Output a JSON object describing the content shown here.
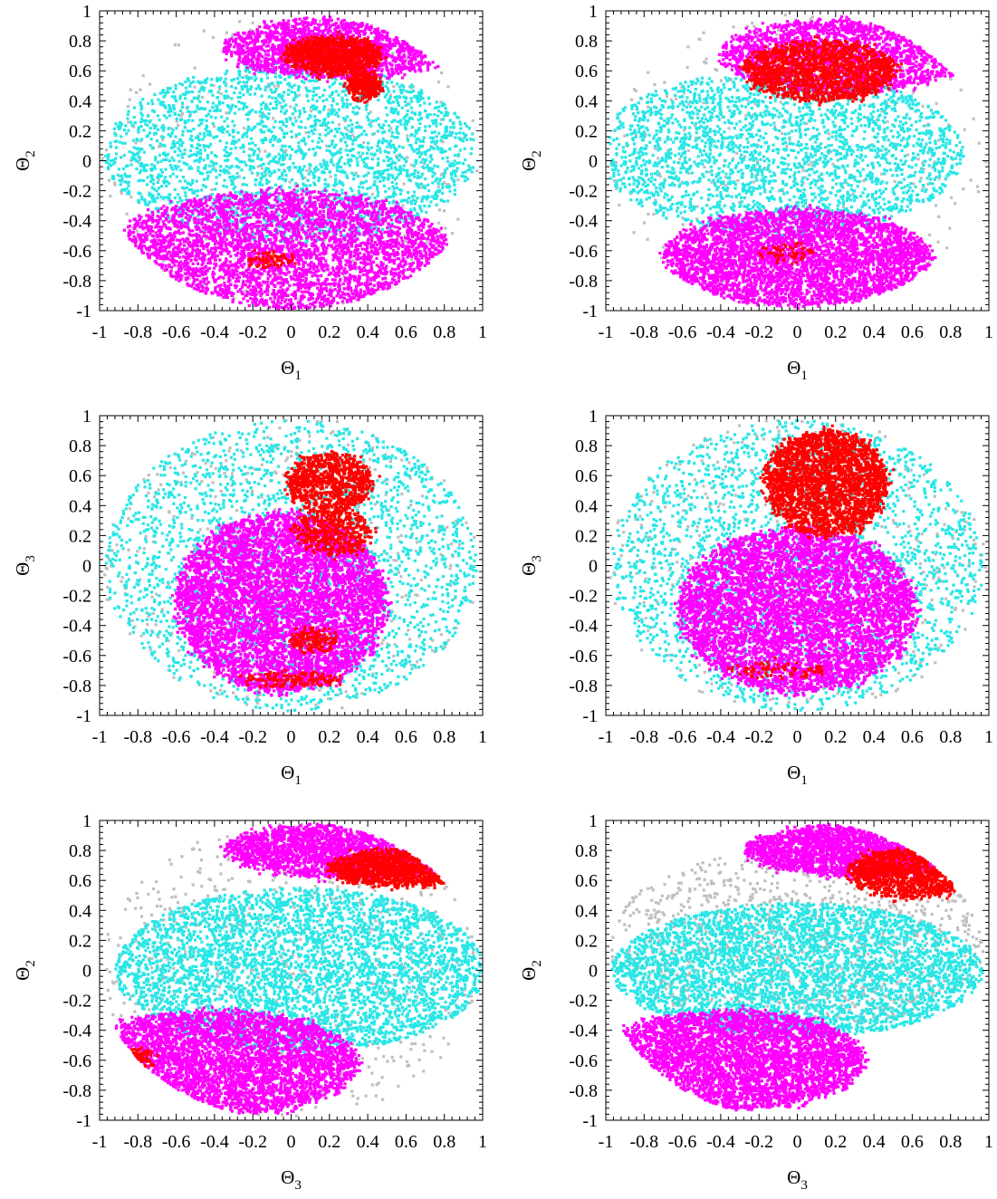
{
  "figure": {
    "background": "#ffffff"
  },
  "colors": {
    "gray": "#bfbfbf",
    "cyan": "#29e6e6",
    "magenta": "#ff00ff",
    "red": "#ff0000"
  },
  "chart_data": [
    {
      "type": "scatter",
      "panel": "row1-left",
      "xlabel": "Θ",
      "xlabel_sub": "1",
      "ylabel": "Θ",
      "ylabel_sub": "2",
      "xlim": [
        -1,
        1
      ],
      "ylim": [
        -1,
        1
      ],
      "xticks": [
        "-1",
        "-0.8",
        "-0.6",
        "-0.4",
        "-0.2",
        "0",
        "0.2",
        "0.4",
        "0.6",
        "0.8",
        "1"
      ],
      "yticks": [
        "1",
        "0.8",
        "0.6",
        "0.4",
        "0.2",
        "0",
        "-0.2",
        "-0.4",
        "-0.6",
        "-0.8",
        "-1"
      ],
      "grid": false,
      "legend": "none",
      "series": [
        {
          "color": "gray",
          "points": 350,
          "region": [
            0,
            0,
            0.99,
            0.99
          ]
        },
        {
          "color": "cyan",
          "points": 2600,
          "region": [
            0,
            0.05,
            0.97,
            0.6
          ]
        },
        {
          "color": "magenta",
          "points": 4200,
          "region": [
            -0.05,
            -0.6,
            0.88,
            0.4
          ]
        },
        {
          "color": "magenta",
          "points": 2000,
          "region": [
            0.25,
            0.75,
            0.6,
            0.2
          ]
        },
        {
          "color": "red",
          "points": 1100,
          "region": [
            0.22,
            0.7,
            0.25,
            0.12
          ]
        },
        {
          "color": "red",
          "points": 350,
          "region": [
            0.38,
            0.5,
            0.08,
            0.09
          ]
        },
        {
          "color": "red",
          "points": 80,
          "region": [
            -0.1,
            -0.66,
            0.12,
            0.04
          ]
        }
      ]
    },
    {
      "type": "scatter",
      "panel": "row1-right",
      "xlabel": "Θ",
      "xlabel_sub": "1",
      "ylabel": "Θ",
      "ylabel_sub": "2",
      "xlim": [
        -1,
        1
      ],
      "ylim": [
        -1,
        1
      ],
      "xticks": [
        "-1",
        "-0.8",
        "-0.6",
        "-0.4",
        "-0.2",
        "0",
        "0.2",
        "0.4",
        "0.6",
        "0.8",
        "1"
      ],
      "yticks": [
        "1",
        "0.8",
        "0.6",
        "0.4",
        "0.2",
        "0",
        "-0.2",
        "-0.4",
        "-0.6",
        "-0.8",
        "-1"
      ],
      "grid": false,
      "legend": "none",
      "series": [
        {
          "color": "gray",
          "points": 350,
          "region": [
            0,
            0,
            0.99,
            0.99
          ]
        },
        {
          "color": "cyan",
          "points": 2600,
          "region": [
            -0.1,
            0.05,
            0.97,
            0.55
          ]
        },
        {
          "color": "magenta",
          "points": 4000,
          "region": [
            0.0,
            -0.65,
            0.7,
            0.32
          ]
        },
        {
          "color": "magenta",
          "points": 2200,
          "region": [
            0.25,
            0.7,
            0.65,
            0.25
          ]
        },
        {
          "color": "red",
          "points": 1600,
          "region": [
            0.12,
            0.6,
            0.4,
            0.2
          ]
        },
        {
          "color": "red",
          "points": 60,
          "region": [
            -0.05,
            -0.62,
            0.15,
            0.06
          ]
        }
      ]
    },
    {
      "type": "scatter",
      "panel": "row2-left",
      "xlabel": "Θ",
      "xlabel_sub": "1",
      "ylabel": "Θ",
      "ylabel_sub": "3",
      "xlim": [
        -1,
        1
      ],
      "ylim": [
        -1,
        1
      ],
      "xticks": [
        "-1",
        "-0.8",
        "-0.6",
        "-0.4",
        "-0.2",
        "0",
        "0.2",
        "0.4",
        "0.6",
        "0.8",
        "1"
      ],
      "yticks": [
        "1",
        "0.8",
        "0.6",
        "0.4",
        "0.2",
        "0",
        "-0.2",
        "-0.4",
        "-0.6",
        "-0.8",
        "-1"
      ],
      "grid": false,
      "legend": "none",
      "series": [
        {
          "color": "gray",
          "points": 400,
          "region": [
            0,
            0,
            0.99,
            0.99
          ]
        },
        {
          "color": "cyan",
          "points": 2400,
          "region": [
            0,
            0,
            0.97,
            0.97
          ]
        },
        {
          "color": "magenta",
          "points": 9000,
          "region": [
            -0.05,
            -0.25,
            0.55,
            0.6
          ]
        },
        {
          "color": "red",
          "points": 900,
          "region": [
            0.2,
            0.55,
            0.22,
            0.2
          ]
        },
        {
          "color": "red",
          "points": 450,
          "region": [
            0.22,
            0.22,
            0.2,
            0.15
          ]
        },
        {
          "color": "red",
          "points": 150,
          "region": [
            0.12,
            -0.5,
            0.12,
            0.08
          ]
        },
        {
          "color": "red",
          "points": 150,
          "region": [
            0.0,
            -0.76,
            0.28,
            0.04
          ]
        }
      ]
    },
    {
      "type": "scatter",
      "panel": "row2-right",
      "xlabel": "Θ",
      "xlabel_sub": "1",
      "ylabel": "Θ",
      "ylabel_sub": "3",
      "xlim": [
        -1,
        1
      ],
      "ylim": [
        -1,
        1
      ],
      "xticks": [
        "-1",
        "-0.8",
        "-0.6",
        "-0.4",
        "-0.2",
        "0",
        "0.2",
        "0.4",
        "0.6",
        "0.8",
        "1"
      ],
      "yticks": [
        "1",
        "0.8",
        "0.6",
        "0.4",
        "0.2",
        "0",
        "-0.2",
        "-0.4",
        "-0.6",
        "-0.8",
        "-1"
      ],
      "grid": false,
      "legend": "none",
      "series": [
        {
          "color": "gray",
          "points": 400,
          "region": [
            0,
            0,
            0.99,
            0.99
          ]
        },
        {
          "color": "cyan",
          "points": 2400,
          "region": [
            0,
            0,
            0.97,
            0.97
          ]
        },
        {
          "color": "magenta",
          "points": 9000,
          "region": [
            0.0,
            -0.3,
            0.62,
            0.55
          ]
        },
        {
          "color": "red",
          "points": 2600,
          "region": [
            0.15,
            0.55,
            0.32,
            0.35
          ]
        },
        {
          "color": "red",
          "points": 80,
          "region": [
            -0.1,
            -0.7,
            0.25,
            0.05
          ]
        }
      ]
    },
    {
      "type": "scatter",
      "panel": "row3-left",
      "xlabel": "Θ",
      "xlabel_sub": "3",
      "ylabel": "Θ",
      "ylabel_sub": "2",
      "xlim": [
        -1,
        1
      ],
      "ylim": [
        -1,
        1
      ],
      "xticks": [
        "-1",
        "-0.8",
        "-0.6",
        "-0.4",
        "-0.2",
        "0",
        "0.2",
        "0.4",
        "0.6",
        "0.8",
        "1"
      ],
      "yticks": [
        "1",
        "0.8",
        "0.6",
        "0.4",
        "0.2",
        "0",
        "-0.2",
        "-0.4",
        "-0.6",
        "-0.8",
        "-1"
      ],
      "grid": false,
      "legend": "none",
      "series": [
        {
          "color": "gray",
          "points": 700,
          "region": [
            0,
            0,
            0.99,
            0.99
          ]
        },
        {
          "color": "cyan",
          "points": 4000,
          "region": [
            0.05,
            0.0,
            0.97,
            0.55
          ]
        },
        {
          "color": "magenta",
          "points": 4800,
          "region": [
            -0.4,
            -0.62,
            0.75,
            0.35
          ]
        },
        {
          "color": "magenta",
          "points": 3000,
          "region": [
            0.35,
            0.8,
            0.7,
            0.18
          ]
        },
        {
          "color": "red",
          "points": 1400,
          "region": [
            0.55,
            0.68,
            0.35,
            0.12
          ]
        },
        {
          "color": "red",
          "points": 120,
          "region": [
            -0.8,
            -0.6,
            0.08,
            0.08
          ]
        }
      ]
    },
    {
      "type": "scatter",
      "panel": "row3-right",
      "xlabel": "Θ",
      "xlabel_sub": "3",
      "ylabel": "Θ",
      "ylabel_sub": "2",
      "xlim": [
        -1,
        1
      ],
      "ylim": [
        -1,
        1
      ],
      "xticks": [
        "-1",
        "-0.8",
        "-0.6",
        "-0.4",
        "-0.2",
        "0",
        "0.2",
        "0.4",
        "0.6",
        "0.8",
        "1"
      ],
      "yticks": [
        "1",
        "0.8",
        "0.6",
        "0.4",
        "0.2",
        "0",
        "-0.2",
        "-0.4",
        "-0.6",
        "-0.8",
        "-1"
      ],
      "grid": false,
      "legend": "none",
      "series": [
        {
          "color": "gray",
          "points": 1200,
          "region": [
            0.0,
            0.2,
            0.99,
            0.6
          ]
        },
        {
          "color": "cyan",
          "points": 3800,
          "region": [
            0.0,
            0.0,
            0.97,
            0.45
          ]
        },
        {
          "color": "magenta",
          "points": 4600,
          "region": [
            -0.35,
            -0.6,
            0.7,
            0.33
          ]
        },
        {
          "color": "magenta",
          "points": 2800,
          "region": [
            0.35,
            0.8,
            0.62,
            0.17
          ]
        },
        {
          "color": "red",
          "points": 1500,
          "region": [
            0.6,
            0.65,
            0.33,
            0.16
          ]
        }
      ]
    }
  ]
}
